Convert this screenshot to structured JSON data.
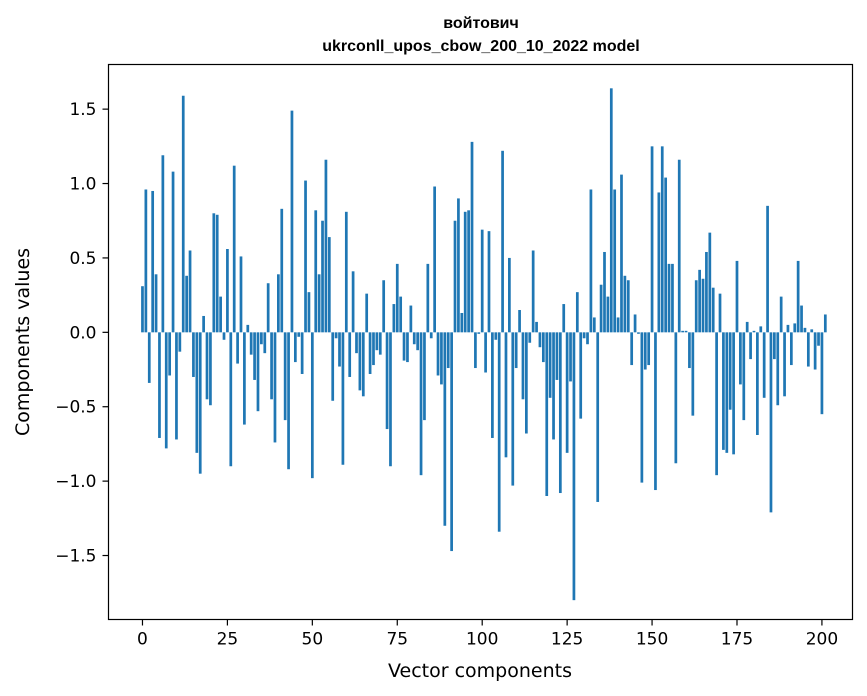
{
  "chart_data": {
    "type": "bar",
    "title": "войтович",
    "subtitle": "ukrconll_upos_cbow_200_10_2022 model",
    "xlabel": "Vector components",
    "ylabel": "Components values",
    "xlim": [
      -10,
      209
    ],
    "ylim": [
      -1.93,
      1.8
    ],
    "xticks": [
      0,
      25,
      50,
      75,
      100,
      125,
      150,
      175,
      200
    ],
    "xtick_labels": [
      "0",
      "25",
      "50",
      "75",
      "100",
      "125",
      "150",
      "175",
      "200"
    ],
    "yticks": [
      -1.5,
      -1.0,
      -0.5,
      0.0,
      0.5,
      1.0,
      1.5
    ],
    "ytick_labels": [
      "−1.5",
      "−1.0",
      "−0.5",
      "0.0",
      "0.5",
      "1.0",
      "1.5"
    ],
    "bar_color": "#1f77b4",
    "grid": false,
    "values": [
      0.31,
      0.96,
      -0.34,
      0.95,
      0.39,
      -0.71,
      1.19,
      -0.78,
      -0.29,
      1.08,
      -0.72,
      -0.13,
      1.59,
      0.38,
      0.55,
      -0.3,
      -0.81,
      -0.95,
      0.11,
      -0.45,
      -0.49,
      0.8,
      0.79,
      0.24,
      -0.05,
      0.56,
      -0.9,
      1.12,
      -0.21,
      0.51,
      -0.62,
      0.05,
      -0.15,
      -0.32,
      -0.53,
      -0.08,
      -0.14,
      0.33,
      -0.45,
      -0.74,
      0.39,
      0.83,
      -0.59,
      -0.92,
      1.49,
      -0.2,
      -0.03,
      -0.28,
      1.02,
      0.27,
      -0.98,
      0.82,
      0.39,
      0.75,
      1.16,
      0.64,
      -0.46,
      -0.04,
      -0.23,
      -0.89,
      0.81,
      -0.3,
      0.41,
      -0.14,
      -0.39,
      -0.43,
      0.26,
      -0.28,
      -0.22,
      -0.12,
      -0.15,
      0.35,
      -0.65,
      -0.9,
      0.19,
      0.46,
      0.24,
      -0.19,
      -0.2,
      0.18,
      -0.08,
      -0.12,
      -0.96,
      -0.59,
      0.46,
      -0.04,
      0.98,
      -0.29,
      -0.35,
      -1.3,
      -0.24,
      -1.47,
      0.75,
      0.9,
      0.13,
      0.81,
      0.82,
      1.28,
      -0.24,
      -0.01,
      0.69,
      -0.27,
      0.68,
      -0.71,
      -0.05,
      -1.34,
      1.22,
      -0.84,
      0.5,
      -1.03,
      -0.24,
      0.15,
      -0.45,
      -0.68,
      -0.07,
      0.55,
      0.07,
      -0.1,
      -0.2,
      -1.1,
      -0.44,
      -0.72,
      -0.32,
      -1.08,
      0.19,
      -0.81,
      -0.33,
      -1.8,
      0.27,
      -0.58,
      -0.04,
      -0.08,
      0.96,
      0.1,
      -1.14,
      0.32,
      0.54,
      0.24,
      1.64,
      0.96,
      0.1,
      1.06,
      0.38,
      0.35,
      -0.22,
      0.12,
      -0.01,
      -1.01,
      -0.25,
      -0.22,
      1.25,
      -1.06,
      0.94,
      1.25,
      1.04,
      0.46,
      0.46,
      -0.88,
      1.16,
      0.01,
      0.01,
      -0.24,
      -0.56,
      0.35,
      0.42,
      0.36,
      0.54,
      0.67,
      0.3,
      -0.96,
      0.26,
      -0.79,
      -0.81,
      -0.52,
      -0.82,
      0.48,
      -0.35,
      -0.59,
      0.07,
      -0.18,
      0.01,
      -0.69,
      0.04,
      -0.44,
      0.85,
      -1.21,
      -0.18,
      -0.49,
      0.24,
      -0.43,
      0.05,
      -0.22,
      0.06,
      0.48,
      0.18,
      0.03,
      -0.23,
      0.02,
      -0.25,
      -0.09,
      -0.55,
      0.12
    ]
  }
}
